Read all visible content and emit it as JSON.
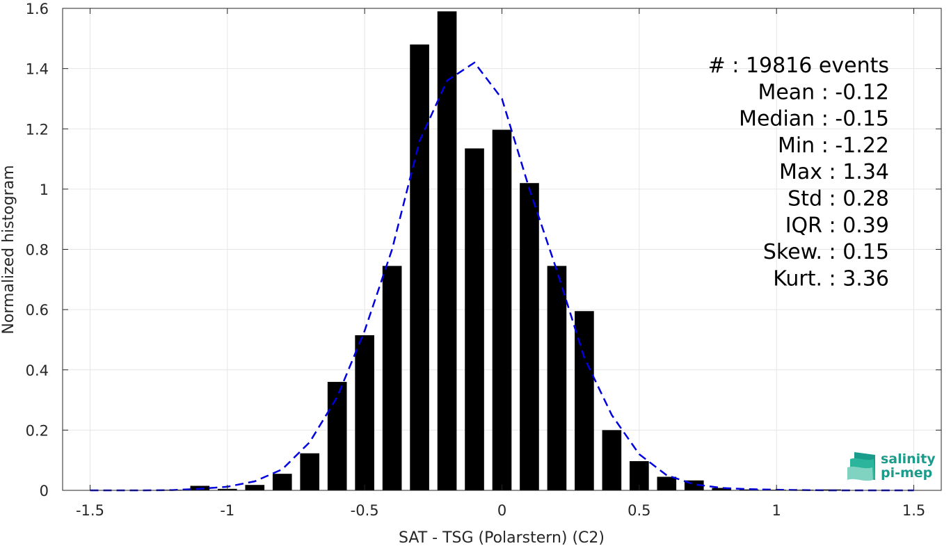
{
  "chart_data": {
    "type": "bar",
    "xlabel": "SAT - TSG (Polarstern) (C2)",
    "ylabel": "Normalized histogram",
    "xlim": [
      -1.6,
      1.6
    ],
    "ylim": [
      0,
      1.6
    ],
    "x_ticks": [
      -1.5,
      -1,
      -0.5,
      0,
      0.5,
      1,
      1.5
    ],
    "x_tick_labels": [
      "-1.5",
      "-1",
      "-0.5",
      "0",
      "0.5",
      "1",
      "1.5"
    ],
    "y_ticks": [
      0,
      0.2,
      0.4,
      0.6,
      0.8,
      1,
      1.2,
      1.4,
      1.6
    ],
    "y_tick_labels": [
      "0",
      "0.2",
      "0.4",
      "0.6",
      "0.8",
      "1",
      "1.2",
      "1.4",
      "1.6"
    ],
    "grid": true,
    "bar_width": 0.07,
    "bars": {
      "x": [
        -1.5,
        -1.4,
        -1.3,
        -1.2,
        -1.1,
        -1.0,
        -0.9,
        -0.8,
        -0.7,
        -0.6,
        -0.5,
        -0.4,
        -0.3,
        -0.2,
        -0.1,
        0.0,
        0.1,
        0.2,
        0.3,
        0.4,
        0.5,
        0.6,
        0.7,
        0.8,
        0.9,
        1.0,
        1.1,
        1.2,
        1.3,
        1.4,
        1.5
      ],
      "values": [
        0,
        0,
        0,
        0.002,
        0.015,
        0.005,
        0.018,
        0.055,
        0.123,
        0.36,
        0.515,
        0.745,
        1.48,
        1.59,
        1.135,
        1.197,
        1.02,
        0.745,
        0.595,
        0.2,
        0.097,
        0.045,
        0.033,
        0.008,
        0.003,
        0.002,
        0.002,
        0.003,
        0,
        0,
        0
      ],
      "color": "#000000"
    },
    "fit": {
      "style": "dashed",
      "color": "#0000e0",
      "x": [
        -1.5,
        -1.4,
        -1.3,
        -1.2,
        -1.1,
        -1.0,
        -0.9,
        -0.8,
        -0.7,
        -0.6,
        -0.5,
        -0.4,
        -0.3,
        -0.2,
        -0.1,
        0.0,
        0.1,
        0.2,
        0.3,
        0.4,
        0.5,
        0.6,
        0.7,
        0.8,
        0.9,
        1.0,
        1.1,
        1.2,
        1.3,
        1.4,
        1.5
      ],
      "y": [
        0,
        0,
        0,
        0.001,
        0.005,
        0.012,
        0.03,
        0.07,
        0.16,
        0.31,
        0.53,
        0.8,
        1.16,
        1.36,
        1.42,
        1.3,
        1.0,
        0.73,
        0.44,
        0.25,
        0.12,
        0.05,
        0.02,
        0.008,
        0.004,
        0.002,
        0.001,
        0,
        0,
        0,
        0
      ]
    },
    "stats": [
      "#  : 19816 events",
      "Mean : -0.12",
      "Median : -0.15",
      "Min : -1.22",
      "Max : 1.34",
      "Std : 0.28",
      "IQR : 0.39",
      "Skew. : 0.15",
      "Kurt. : 3.36"
    ]
  },
  "logo": {
    "line1": "salinity",
    "line2": "pi-mep",
    "colors": [
      "#1a9c8c",
      "#2bb59c",
      "#7fd3c0"
    ]
  }
}
